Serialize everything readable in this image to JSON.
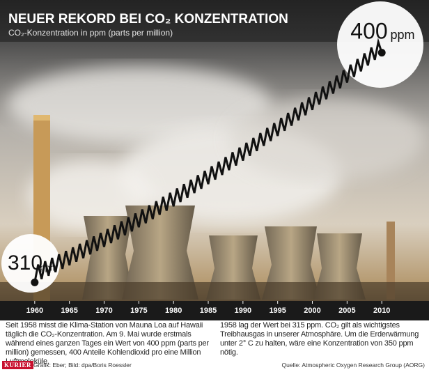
{
  "chart_data": {
    "type": "line",
    "title": "NEUER REKORD BEI CO₂ KONZENTRATION",
    "subtitle": "CO₂-Konzentration in ppm (parts per million)",
    "x": [
      1960,
      1960.5,
      1961,
      1961.5,
      1962,
      1962.5,
      1963,
      1963.5,
      1964,
      1964.5,
      1965,
      1965.5,
      1966,
      1966.5,
      1967,
      1967.5,
      1968,
      1968.5,
      1969,
      1969.5,
      1970,
      1970.5,
      1971,
      1971.5,
      1972,
      1972.5,
      1973,
      1973.5,
      1974,
      1974.5,
      1975,
      1975.5,
      1976,
      1976.5,
      1977,
      1977.5,
      1978,
      1978.5,
      1979,
      1979.5,
      1980,
      1980.5,
      1981,
      1981.5,
      1982,
      1982.5,
      1983,
      1983.5,
      1984,
      1984.5,
      1985,
      1985.5,
      1986,
      1986.5,
      1987,
      1987.5,
      1988,
      1988.5,
      1989,
      1989.5,
      1990,
      1990.5,
      1991,
      1991.5,
      1992,
      1992.5,
      1993,
      1993.5,
      1994,
      1994.5,
      1995,
      1995.5,
      1996,
      1996.5,
      1997,
      1997.5,
      1998,
      1998.5,
      1999,
      1999.5,
      2000,
      2000.5,
      2001,
      2001.5,
      2002,
      2002.5,
      2003,
      2003.5,
      2004,
      2004.5,
      2005,
      2005.5,
      2006,
      2006.5,
      2007,
      2007.5,
      2008,
      2008.5,
      2009,
      2009.5,
      2010
    ],
    "series": [
      {
        "color": "#111111",
        "values": [
          310.0,
          317.0,
          311.3,
          318.3,
          312.6,
          319.6,
          314.0,
          321.0,
          315.3,
          322.3,
          316.7,
          323.7,
          318.1,
          325.1,
          319.5,
          326.5,
          321.0,
          328.0,
          322.4,
          329.4,
          323.9,
          330.9,
          325.4,
          332.4,
          326.9,
          333.9,
          328.5,
          335.5,
          330.0,
          337.0,
          331.6,
          338.6,
          333.2,
          340.2,
          334.8,
          341.8,
          336.5,
          343.5,
          338.1,
          345.1,
          339.8,
          346.8,
          341.5,
          348.5,
          343.2,
          350.2,
          345.0,
          352.0,
          346.7,
          353.7,
          348.5,
          355.5,
          350.3,
          357.3,
          352.1,
          359.1,
          354.0,
          361.0,
          355.8,
          362.8,
          357.7,
          364.7,
          359.6,
          366.6,
          361.5,
          368.5,
          363.5,
          370.5,
          365.4,
          372.4,
          367.4,
          374.4,
          369.4,
          376.4,
          371.4,
          378.4,
          373.5,
          380.5,
          375.5,
          382.5,
          377.6,
          384.6,
          379.7,
          386.7,
          381.8,
          388.8,
          384.0,
          391.0,
          386.1,
          393.1,
          388.3,
          395.3,
          390.5,
          397.5,
          392.7,
          399.7,
          395.0,
          402.0,
          397.2,
          404.2,
          400.0
        ]
      }
    ],
    "xlim": [
      1955,
      2016
    ],
    "xticks": [
      1960,
      1965,
      1970,
      1975,
      1980,
      1985,
      1990,
      1995,
      2000,
      2005,
      2010
    ],
    "ylim": [
      300,
      410
    ],
    "annotations": [
      {
        "text": "310",
        "unit": "ppm"
      },
      {
        "text": "400",
        "unit": "ppm"
      }
    ]
  },
  "text": {
    "paragraphs": [
      "Seit 1958 misst die Klima-Station von Mauna Loa auf Hawaii täglich die CO₂-Konzentration. Am 9. Mai wurde erstmals während eines ganzen Tages ein Wert von 400 ppm (parts per million) gemessen, 400 Anteile Kohlendioxid pro eine Million Luftmoleküle.",
      "1958 lag der Wert bei 315 ppm. CO₂ gilt als wichtigstes Treibhausgas in unserer Atmosphäre. Um die Erderwärmung unter 2° C zu halten, wäre eine Konzentration von 350 ppm nötig."
    ],
    "logo": "KURIER",
    "credit": "Grafik: Eber; Bild: dpa/Boris Roessler",
    "source": "Quelle: Atmospheric Oxygen Research Group (AORG)"
  }
}
